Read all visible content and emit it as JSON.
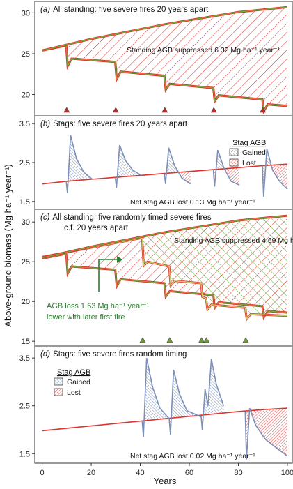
{
  "colors": {
    "standing_line": "#7da83a",
    "lost_line": "#e0312c",
    "gained_line": "#7b8fb8",
    "lost_hatch": "#e0312c",
    "gained_hatch": "#6a7fa8",
    "random_hatch": "#6ab23c",
    "fire_marker_a": "#c62828",
    "fire_marker_c": "#6f9a37",
    "annotation_green": "#2e7d32"
  },
  "axes": {
    "ylabel": "Above-ground biomass (Mg ha⁻¹ year⁻¹)",
    "xlabel": "Years",
    "x_ticks": [
      "0",
      "20",
      "40",
      "60",
      "80",
      "100"
    ]
  },
  "chart_data": [
    {
      "type": "line",
      "id": "a",
      "title_prefix": "(a)",
      "title_text": "All standing: five severe fires 20 years apart",
      "y_ticks": [
        "20",
        "25",
        "30"
      ],
      "ylim": [
        17.4,
        31.4
      ],
      "xlim": [
        -3,
        102
      ],
      "note": "Standing AGB suppressed 6.32 Mg ha⁻¹ year⁻¹",
      "fire_years": [
        10,
        30,
        50,
        70,
        90
      ],
      "upper": {
        "x": [
          0,
          10,
          20,
          30,
          40,
          50,
          60,
          70,
          80,
          90,
          100
        ],
        "y": [
          25.4,
          26.1,
          26.8,
          27.4,
          28.0,
          28.6,
          29.1,
          29.6,
          30.1,
          30.4,
          30.7
        ]
      },
      "lower": {
        "x": [
          0,
          9.8,
          10.4,
          12,
          29.8,
          30.4,
          32,
          49.8,
          50.4,
          52,
          69.8,
          70.4,
          72,
          89.8,
          90.4,
          92,
          100
        ],
        "y": [
          25.4,
          26.0,
          23.5,
          24.4,
          24.0,
          21.9,
          22.8,
          22.3,
          20.6,
          21.3,
          20.8,
          19.2,
          19.9,
          19.4,
          18.0,
          18.8,
          18.6
        ]
      }
    },
    {
      "type": "line",
      "id": "b",
      "title_prefix": "(b)",
      "title_text": "Stags: five severe fires 20 years apart",
      "y_ticks": [
        "1.5",
        "2.5",
        "3.5"
      ],
      "ylim": [
        1.3,
        3.7
      ],
      "xlim": [
        -3,
        102
      ],
      "note": "Net stag AGB lost 0.13 Mg ha⁻¹ year⁻¹",
      "legend_title": "Stag AGB",
      "legend": [
        "Gained",
        "Lost"
      ],
      "baseline": {
        "x": [
          0,
          10,
          20,
          30,
          40,
          50,
          60,
          70,
          80,
          90,
          100
        ],
        "y": [
          1.95,
          2.02,
          2.07,
          2.12,
          2.17,
          2.22,
          2.27,
          2.32,
          2.37,
          2.42,
          2.46
        ]
      },
      "spikes": [
        {
          "x": [
            9.8,
            10.3,
            11.6,
            14,
            17,
            20.5
          ],
          "y": [
            2.02,
            1.72,
            3.2,
            2.6,
            2.25,
            2.07
          ]
        },
        {
          "x": [
            29.8,
            30.3,
            31.6,
            34,
            37,
            40.5
          ],
          "y": [
            2.12,
            1.85,
            2.95,
            2.55,
            2.3,
            2.17
          ]
        },
        {
          "x": [
            49.8,
            50.3,
            51.6,
            54,
            57,
            60.5
          ],
          "y": [
            2.22,
            1.95,
            2.88,
            2.42,
            2.1,
            1.95
          ]
        },
        {
          "x": [
            69.8,
            70.3,
            71.6,
            74,
            77,
            80.5
          ],
          "y": [
            2.32,
            1.88,
            2.82,
            2.38,
            2.02,
            1.92
          ]
        },
        {
          "x": [
            89.8,
            90.3,
            91.6,
            94,
            97,
            100
          ],
          "y": [
            2.42,
            1.62,
            2.85,
            2.3,
            2.0,
            1.82
          ]
        }
      ]
    },
    {
      "type": "line",
      "id": "c",
      "title_prefix": "(c)",
      "title_text": "All standing: five randomly timed severe fires",
      "subtitle": "c.f. 20 years apart",
      "y_ticks": [
        "15",
        "20",
        "25",
        "30"
      ],
      "ylim": [
        14.4,
        31.6
      ],
      "xlim": [
        -3,
        102
      ],
      "note": "Standing AGB suppressed 4.69 Mg ha⁻¹ year⁻¹",
      "green_note_1": "AGB loss 1.63 Mg ha⁻¹ year⁻¹",
      "green_note_2": "lower with later first fire",
      "fire_years": [
        41,
        52,
        65,
        67,
        83
      ],
      "upper": {
        "x": [
          0,
          10,
          20,
          30,
          40,
          50,
          60,
          70,
          80,
          90,
          100
        ],
        "y": [
          25.5,
          26.2,
          26.9,
          27.5,
          28.1,
          28.7,
          29.2,
          29.7,
          30.2,
          30.5,
          30.8
        ]
      },
      "regular": {
        "x": [
          0,
          9.8,
          10.4,
          12,
          29.8,
          30.4,
          32,
          49.8,
          50.4,
          52,
          69.8,
          70.4,
          72,
          89.8,
          90.4,
          92,
          100
        ],
        "y": [
          25.4,
          26.0,
          23.5,
          24.4,
          24.0,
          21.9,
          22.8,
          22.3,
          20.6,
          21.3,
          20.8,
          19.2,
          19.9,
          19.4,
          18.0,
          18.8,
          18.6
        ]
      },
      "random": {
        "x": [
          0,
          40.8,
          41.4,
          43,
          51.8,
          52.4,
          54,
          64.8,
          65.3,
          66.8,
          67.4,
          69,
          82.8,
          83.4,
          85,
          100
        ],
        "y": [
          25.6,
          28.0,
          24.5,
          25.0,
          24.4,
          22.0,
          22.6,
          22.3,
          20.6,
          20.4,
          19.0,
          19.6,
          19.2,
          17.8,
          18.4,
          18.2
        ]
      }
    },
    {
      "type": "line",
      "id": "d",
      "title_prefix": "(d)",
      "title_text": "Stags: five severe fires random timing",
      "y_ticks": [
        "1.5",
        "2.5",
        "3.5"
      ],
      "ylim": [
        1.3,
        3.75
      ],
      "xlim": [
        -3,
        102
      ],
      "note": "Net stag AGB lost 0.02 Mg ha⁻¹ year⁻¹",
      "legend_title": "Stag AGB",
      "legend": [
        "Gained",
        "Lost"
      ],
      "baseline": {
        "x": [
          0,
          10,
          20,
          30,
          40,
          50,
          60,
          70,
          80,
          90,
          100
        ],
        "y": [
          1.98,
          2.03,
          2.08,
          2.13,
          2.18,
          2.23,
          2.28,
          2.33,
          2.38,
          2.42,
          2.45
        ]
      },
      "spikes": [
        {
          "x": [
            40.8,
            41.3,
            42.6,
            45,
            48,
            51.8
          ],
          "y": [
            2.18,
            1.85,
            3.5,
            2.9,
            2.45,
            2.23
          ]
        },
        {
          "x": [
            51.8,
            52.3,
            53.6,
            56,
            59,
            64.8
          ],
          "y": [
            2.23,
            1.9,
            3.25,
            2.75,
            2.4,
            2.27
          ]
        },
        {
          "x": [
            64.8,
            65.3,
            66.4,
            67.6,
            69,
            71,
            74
          ],
          "y": [
            2.29,
            2.0,
            2.85,
            2.5,
            3.48,
            2.95,
            2.5
          ]
        },
        {
          "x": [
            82.8,
            83.3,
            84.6,
            87,
            91,
            96,
            100
          ],
          "y": [
            2.38,
            1.38,
            2.45,
            2.1,
            1.8,
            1.6,
            1.45
          ]
        }
      ]
    }
  ]
}
